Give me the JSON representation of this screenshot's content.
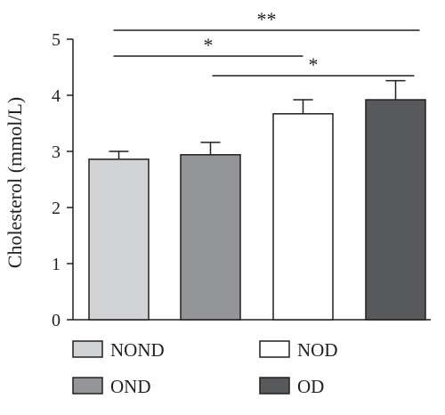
{
  "chart_data": {
    "type": "bar",
    "ylabel": "Cholesterol (mmol/L)",
    "ylim": [
      0,
      5
    ],
    "yticks": [
      0,
      1,
      2,
      3,
      4,
      5
    ],
    "categories": [
      "NOND",
      "OND",
      "NOD",
      "OD"
    ],
    "values": [
      2.86,
      2.94,
      3.67,
      3.92
    ],
    "errors": [
      0.14,
      0.22,
      0.25,
      0.34
    ],
    "colors": [
      "#d2d3d5",
      "#939598",
      "#ffffff",
      "#58595b"
    ],
    "legend": {
      "placement": "bottom",
      "entries": [
        "NOND",
        "NOD",
        "OND",
        "OD"
      ]
    },
    "significance": [
      {
        "from": "NOND",
        "to": "OD",
        "label": "**"
      },
      {
        "from": "NOND",
        "to": "NOD",
        "label": "*"
      },
      {
        "from": "OND",
        "to": "OD",
        "label": "*"
      }
    ],
    "grid": false
  }
}
